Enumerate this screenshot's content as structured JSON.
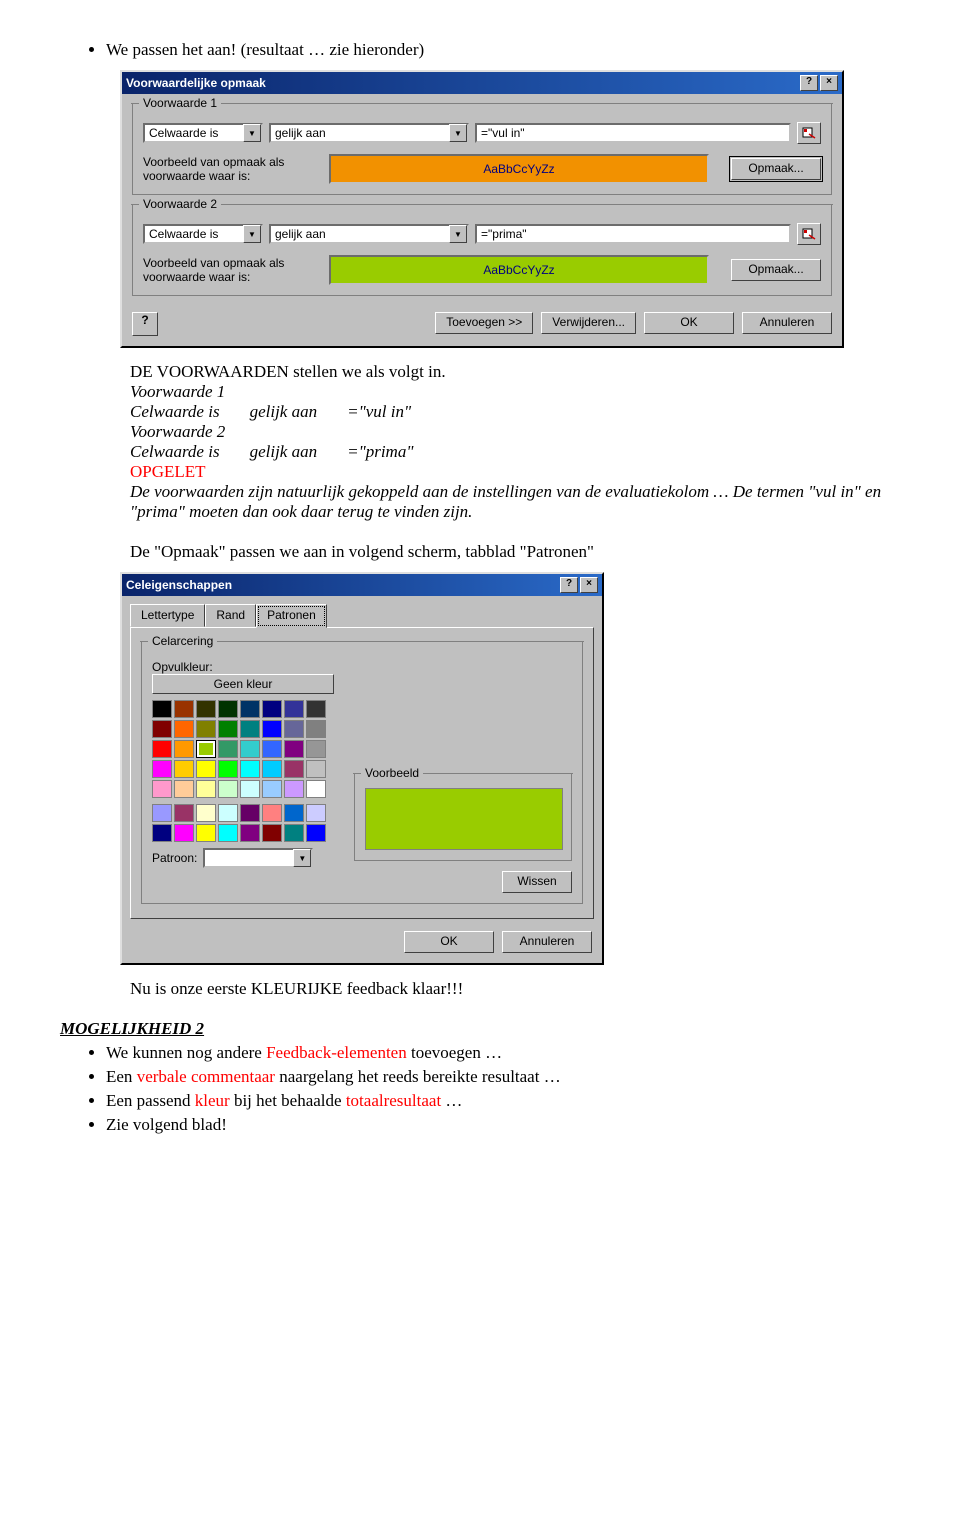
{
  "doc": {
    "bullet1": "We passen het aan! (resultaat … zie hieronder)",
    "intro": "DE VOORWAARDEN stellen we als volgt in.",
    "v1_title": "Voorwaarde 1",
    "v2_title": "Voorwaarde 2",
    "celwaarde": "Celwaarde is",
    "gelijkaan": "gelijk aan",
    "vulin": "=\"vul in\"",
    "prima": "=\"prima\"",
    "opgelet": "OPGELET",
    "opgelet_text": "De voorwaarden zijn natuurlijk gekoppeld aan de instellingen van de evaluatiekolom … De termen \"vul in\" en \"prima\" moeten dan ook daar terug te vinden zijn.",
    "opmaak_line": "De \"Opmaak\" passen we aan in volgend scherm, tabblad \"Patronen\"",
    "nu_eerste": "Nu is onze eerste KLEURIJKE feedback klaar!!!",
    "mogelijkheid2": "MOGELIJKHEID 2",
    "b1_a": "We kunnen nog andere ",
    "b1_b": "Feedback-elementen",
    "b1_c": " toevoegen …",
    "b2_a": "Een ",
    "b2_b": "verbale commentaar",
    "b2_c": " naargelang het reeds bereikte resultaat …",
    "b3_a": "Een passend ",
    "b3_b": "kleur",
    "b3_c": " bij het behaalde ",
    "b3_d": "totaalresultaat",
    "b3_e": " …",
    "b4": "Zie volgend blad!"
  },
  "dlg1": {
    "title": "Voorwaardelijke opmaak",
    "cond1": "Voorwaarde 1",
    "cond2": "Voorwaarde 2",
    "celwaarde": "Celwaarde is",
    "gelijkaan": "gelijk aan",
    "val1": "=\"vul in\"",
    "val2": "=\"prima\"",
    "voorbeeld": "Voorbeeld van opmaak als voorwaarde waar is:",
    "sample": "AaBbCcYyZz",
    "opmaak": "Opmaak...",
    "toevoegen": "Toevoegen >>",
    "verwijderen": "Verwijderen...",
    "ok": "OK",
    "annuleren": "Annuleren",
    "colors": {
      "orange": "#f29100",
      "green": "#99cc00"
    }
  },
  "dlg2": {
    "title": "Celeigenschappen",
    "tabs": [
      "Lettertype",
      "Rand",
      "Patronen"
    ],
    "active_tab": 2,
    "group": "Celarcering",
    "opvulkleur": "Opvulkleur:",
    "geenkleur": "Geen kleur",
    "patroon": "Patroon:",
    "voorbeeld": "Voorbeeld",
    "wissen": "Wissen",
    "ok": "OK",
    "annuleren": "Annuleren",
    "preview_fill": "#99cc00",
    "palette1": [
      "#000000",
      "#993300",
      "#333300",
      "#003300",
      "#003366",
      "#000080",
      "#333399",
      "#333333",
      "#800000",
      "#ff6600",
      "#808000",
      "#008000",
      "#008080",
      "#0000ff",
      "#666699",
      "#808080",
      "#ff0000",
      "#ff9900",
      "#99cc00",
      "#339966",
      "#33cccc",
      "#3366ff",
      "#800080",
      "#969696",
      "#ff00ff",
      "#ffcc00",
      "#ffff00",
      "#00ff00",
      "#00ffff",
      "#00ccff",
      "#993366",
      "#c0c0c0",
      "#ff99cc",
      "#ffcc99",
      "#ffff99",
      "#ccffcc",
      "#ccffff",
      "#99ccff",
      "#cc99ff",
      "#ffffff"
    ],
    "selected_index": 18,
    "palette2": [
      "#9999ff",
      "#993366",
      "#ffffcc",
      "#ccffff",
      "#660066",
      "#ff8080",
      "#0066cc",
      "#ccccff",
      "#000080",
      "#ff00ff",
      "#ffff00",
      "#00ffff",
      "#800080",
      "#800000",
      "#008080",
      "#0000ff"
    ]
  }
}
